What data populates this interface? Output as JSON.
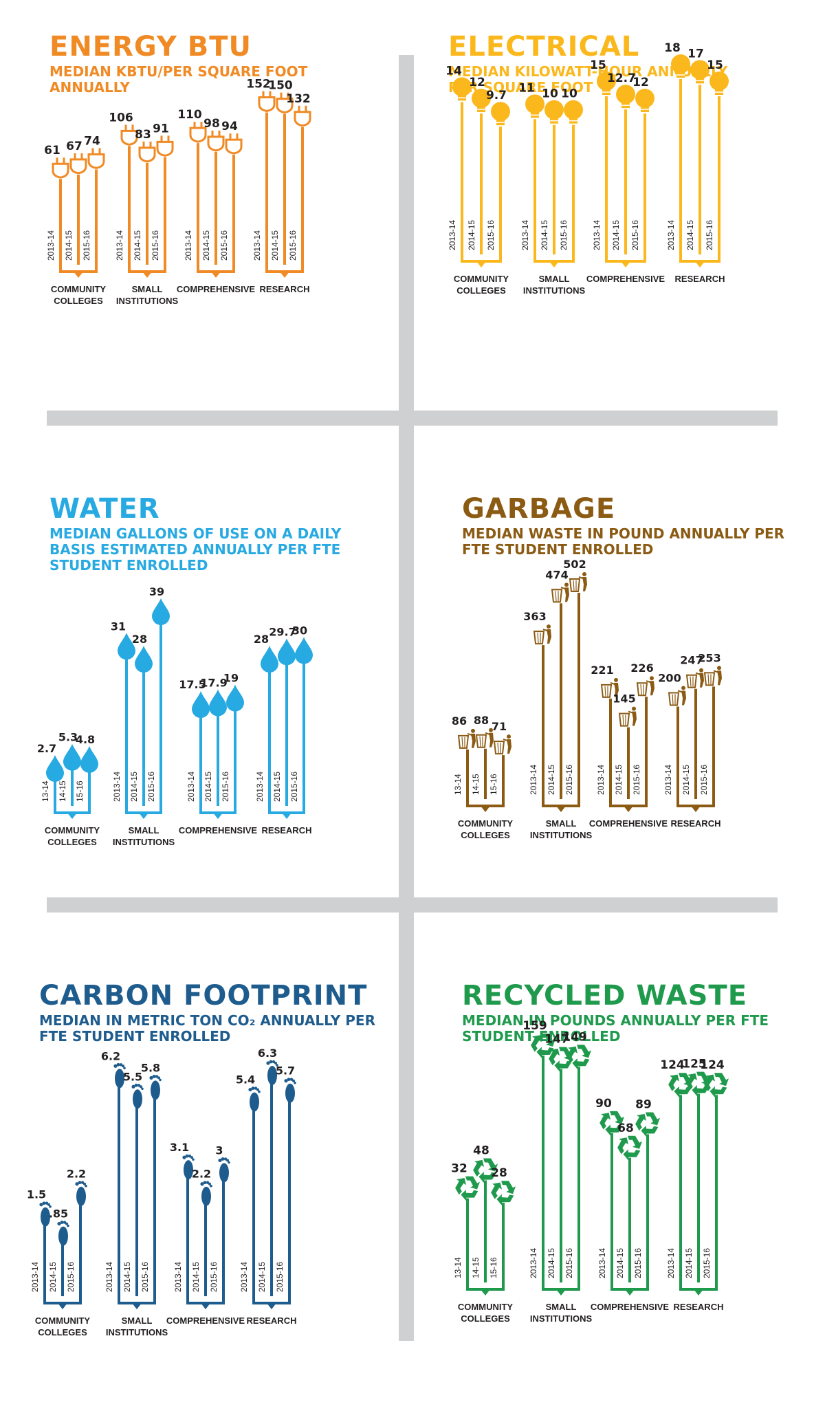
{
  "chart_data": [
    {
      "id": "energy",
      "type": "bar",
      "title": "ENERGY BTU",
      "subtitle": "MEDIAN KBTU/PER SQUARE FOOT ANNUALLY",
      "color": "#f08a24",
      "icon": "plug-icon",
      "categories": [
        {
          "label": [
            "COMMUNITY",
            "COLLEGES"
          ],
          "years": [
            "2013-14",
            "2014-15",
            "2015-16"
          ],
          "values": [
            "61",
            "67",
            "74"
          ]
        },
        {
          "label": [
            "SMALL",
            "INSTITUTIONS"
          ],
          "years": [
            "2013-14",
            "2014-15",
            "2015-16"
          ],
          "values": [
            "106",
            "83",
            "91"
          ]
        },
        {
          "label": [
            "COMPREHENSIVE"
          ],
          "years": [
            "2013-14",
            "2014-15",
            "2015-16"
          ],
          "values": [
            "110",
            "98",
            "94"
          ]
        },
        {
          "label": [
            "RESEARCH"
          ],
          "years": [
            "2013-14",
            "2014-15",
            "2015-16"
          ],
          "values": [
            "152",
            "150",
            "132"
          ]
        }
      ]
    },
    {
      "id": "electrical",
      "type": "bar",
      "title": "ELECTRICAL",
      "subtitle": "MEDIAN KILOWATT-HOUR ANNUALLY PER SQUARE FOOT",
      "color": "#fbb81d",
      "icon": "light-bulb-icon",
      "categories": [
        {
          "label": [
            "COMMUNITY",
            "COLLEGES"
          ],
          "years": [
            "2013-14",
            "2014-15",
            "2015-16"
          ],
          "values": [
            "14",
            "12",
            "9.7"
          ]
        },
        {
          "label": [
            "SMALL",
            "INSTITUTIONS"
          ],
          "years": [
            "2013-14",
            "2014-15",
            "2015-16"
          ],
          "values": [
            "11",
            "10",
            "10"
          ]
        },
        {
          "label": [
            "COMPREHENSIVE"
          ],
          "years": [
            "2013-14",
            "2014-15",
            "2015-16"
          ],
          "values": [
            "15",
            "12.7",
            "12"
          ]
        },
        {
          "label": [
            "RESEARCH"
          ],
          "years": [
            "2013-14",
            "2014-15",
            "2015-16"
          ],
          "values": [
            "18",
            "17",
            "15"
          ]
        }
      ]
    },
    {
      "id": "water",
      "type": "bar",
      "title": "WATER",
      "subtitle": "MEDIAN GALLONS OF USE ON A DAILY BASIS ESTIMATED ANNUALLY PER FTE STUDENT ENROLLED",
      "color": "#27a9e1",
      "icon": "water-drop-icon",
      "categories": [
        {
          "label": [
            "COMMUNITY",
            "COLLEGES"
          ],
          "years": [
            "13-14",
            "14-15",
            "15-16"
          ],
          "values": [
            "2.7",
            "5.3",
            "4.8"
          ]
        },
        {
          "label": [
            "SMALL",
            "INSTITUTIONS"
          ],
          "years": [
            "2013-14",
            "2014-15",
            "2015-16"
          ],
          "values": [
            "31",
            "28",
            "39"
          ]
        },
        {
          "label": [
            "COMPREHENSIVE"
          ],
          "years": [
            "2013-14",
            "2014-15",
            "2015-16"
          ],
          "values": [
            "17.5",
            "17.9",
            "19"
          ]
        },
        {
          "label": [
            "RESEARCH"
          ],
          "years": [
            "2013-14",
            "2014-15",
            "2015-16"
          ],
          "values": [
            "28",
            "29.7",
            "30"
          ]
        }
      ]
    },
    {
      "id": "garbage",
      "type": "bar",
      "title": "GARBAGE",
      "subtitle": "MEDIAN WASTE IN POUND ANNUALLY PER FTE STUDENT ENROLLED",
      "color": "#8b5a13",
      "icon": "trash-can-icon",
      "categories": [
        {
          "label": [
            "COMMUNITY",
            "COLLEGES"
          ],
          "years": [
            "13-14",
            "14-15",
            "15-16"
          ],
          "values": [
            "86",
            "88",
            "71"
          ]
        },
        {
          "label": [
            "SMALL",
            "INSTITUTIONS"
          ],
          "years": [
            "2013-14",
            "2014-15",
            "2015-16"
          ],
          "values": [
            "363",
            "474",
            "502"
          ]
        },
        {
          "label": [
            "COMPREHENSIVE"
          ],
          "years": [
            "2013-14",
            "2014-15",
            "2015-16"
          ],
          "values": [
            "221",
            "145",
            "226"
          ]
        },
        {
          "label": [
            "RESEARCH"
          ],
          "years": [
            "2013-14",
            "2014-15",
            "2015-16"
          ],
          "values": [
            "200",
            "247",
            "253"
          ]
        }
      ]
    },
    {
      "id": "carbon",
      "type": "bar",
      "title": "CARBON FOOTPRINT",
      "subtitle": "MEDIAN IN METRIC TON CO₂ ANNUALLY PER FTE STUDENT ENROLLED",
      "color": "#1f5c8e",
      "icon": "footprint-icon",
      "categories": [
        {
          "label": [
            "COMMUNITY",
            "COLLEGES"
          ],
          "years": [
            "2013-14",
            "2014-15",
            "2015-16"
          ],
          "values": [
            "1.5",
            ".85",
            "2.2"
          ]
        },
        {
          "label": [
            "SMALL",
            "INSTITUTIONS"
          ],
          "years": [
            "2013-14",
            "2014-15",
            "2015-16"
          ],
          "values": [
            "6.2",
            "5.5",
            "5.8"
          ]
        },
        {
          "label": [
            "COMPREHENSIVE"
          ],
          "years": [
            "2013-14",
            "2014-15",
            "2015-16"
          ],
          "values": [
            "3.1",
            "2.2",
            "3"
          ]
        },
        {
          "label": [
            "RESEARCH"
          ],
          "years": [
            "2013-14",
            "2014-15",
            "2015-16"
          ],
          "values": [
            "5.4",
            "6.3",
            "5.7"
          ]
        }
      ]
    },
    {
      "id": "recycled",
      "type": "bar",
      "title": "RECYCLED WASTE",
      "subtitle": "MEDIAN IN POUNDS ANNUALLY PER FTE STUDENT ENROLLED",
      "color": "#1f9a4d",
      "icon": "recycle-icon",
      "categories": [
        {
          "label": [
            "COMMUNITY",
            "COLLEGES"
          ],
          "years": [
            "13-14",
            "14-15",
            "15-16"
          ],
          "values": [
            "32",
            "48",
            "28"
          ]
        },
        {
          "label": [
            "SMALL",
            "INSTITUTIONS"
          ],
          "years": [
            "2013-14",
            "2014-15",
            "2015-16"
          ],
          "values": [
            "159",
            "147",
            "149"
          ]
        },
        {
          "label": [
            "COMPREHENSIVE"
          ],
          "years": [
            "2013-14",
            "2014-15",
            "2015-16"
          ],
          "values": [
            "90",
            "68",
            "89"
          ]
        },
        {
          "label": [
            "RESEARCH"
          ],
          "years": [
            "2013-14",
            "2014-15",
            "2015-16"
          ],
          "values": [
            "124",
            "125",
            "124"
          ]
        }
      ]
    }
  ]
}
